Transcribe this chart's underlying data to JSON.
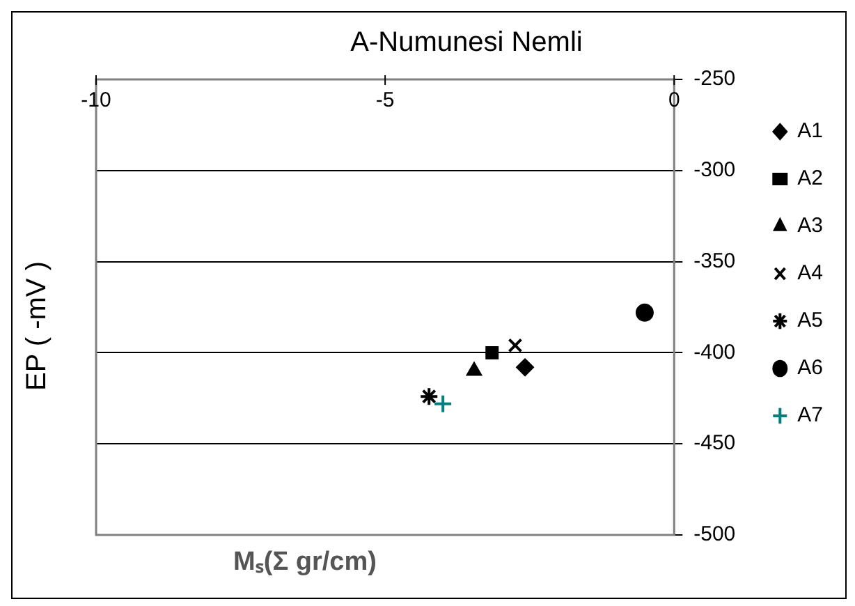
{
  "chart_data": {
    "type": "scatter",
    "title": "A-Numunesi Nemli",
    "xlabel": "Mₛ(Σ gr/cm)",
    "ylabel": "EP ( -mV )",
    "xlim": [
      -10,
      0
    ],
    "xticks": [
      -10,
      -5,
      0
    ],
    "ylim": [
      -500,
      -250
    ],
    "yticks": [
      -250,
      -300,
      -350,
      -400,
      -450,
      -500
    ],
    "grid": "y",
    "legend": "right",
    "series": [
      {
        "name": "A1",
        "color": "#000000",
        "marker": "diamond",
        "x": [
          -2.58
        ],
        "values": [
          -408
        ]
      },
      {
        "name": "A2",
        "color": "#000000",
        "marker": "square",
        "x": [
          -3.15
        ],
        "values": [
          -400
        ]
      },
      {
        "name": "A3",
        "color": "#000000",
        "marker": "triangle",
        "x": [
          -3.46
        ],
        "values": [
          -410
        ]
      },
      {
        "name": "A4",
        "color": "#000000",
        "marker": "cross",
        "x": [
          -2.75
        ],
        "values": [
          -396
        ]
      },
      {
        "name": "A5",
        "color": "#000000",
        "x": [
          -4.24
        ],
        "values": [
          -424
        ]
      },
      {
        "name": "A6",
        "color": "#000000",
        "marker": "circle",
        "x": [
          -0.51
        ],
        "values": [
          -378
        ]
      },
      {
        "name": "A7",
        "color": "#008080",
        "marker": "plus",
        "x": [
          -4.0
        ],
        "values": [
          -428
        ]
      }
    ]
  }
}
